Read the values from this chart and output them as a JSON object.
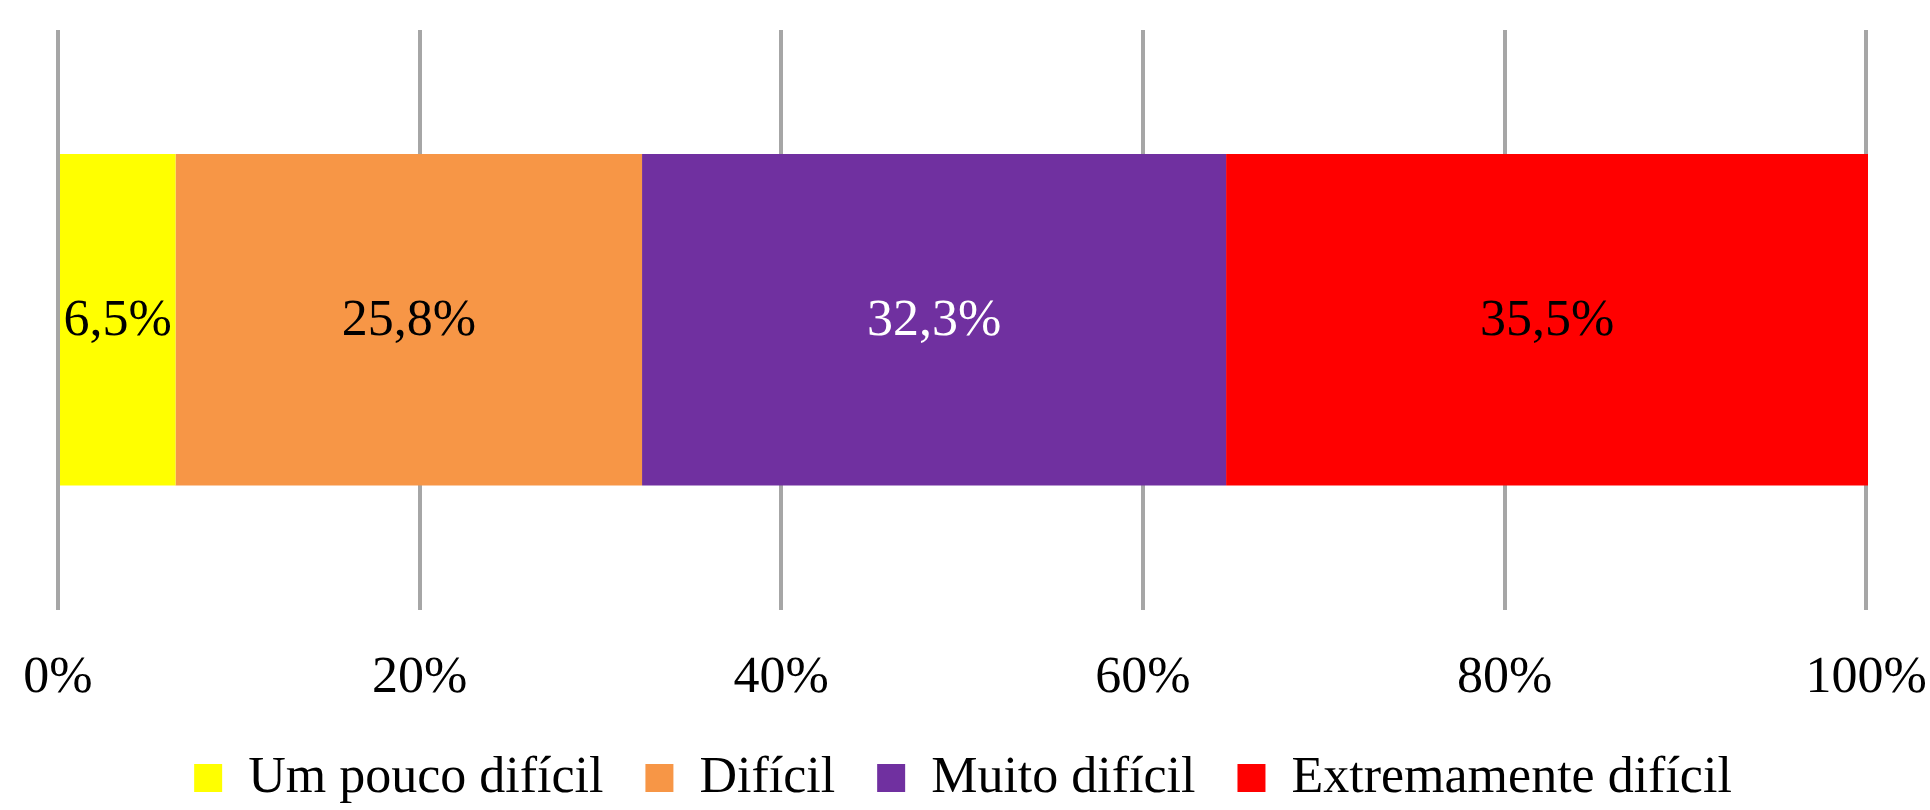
{
  "chart_data": {
    "type": "bar",
    "orientation": "horizontal",
    "stacked": true,
    "categories": [
      null
    ],
    "series": [
      {
        "name": "Um pouco difícil",
        "color": "#ffff00",
        "values": [
          6.5
        ],
        "value_labels": [
          "6,5%"
        ]
      },
      {
        "name": "Difícil",
        "color": "#f79646",
        "values": [
          25.8
        ],
        "value_labels": [
          "25,8%"
        ]
      },
      {
        "name": "Muito difícil",
        "color": "#7030a0",
        "values": [
          32.3
        ],
        "value_labels": [
          "32,3%"
        ]
      },
      {
        "name": "Extremamente difícil",
        "color": "#ff0000",
        "values": [
          35.5
        ],
        "value_labels": [
          "35,5%"
        ]
      }
    ],
    "xlim": [
      0,
      100.1
    ],
    "xticks": [
      {
        "value": 0,
        "label": "0%"
      },
      {
        "value": 20,
        "label": "20%"
      },
      {
        "value": 40,
        "label": "40%"
      },
      {
        "value": 60,
        "label": "60%"
      },
      {
        "value": 80,
        "label": "80%"
      },
      {
        "value": 100,
        "label": "100%"
      }
    ],
    "grid": "x",
    "legend": "bottom"
  }
}
